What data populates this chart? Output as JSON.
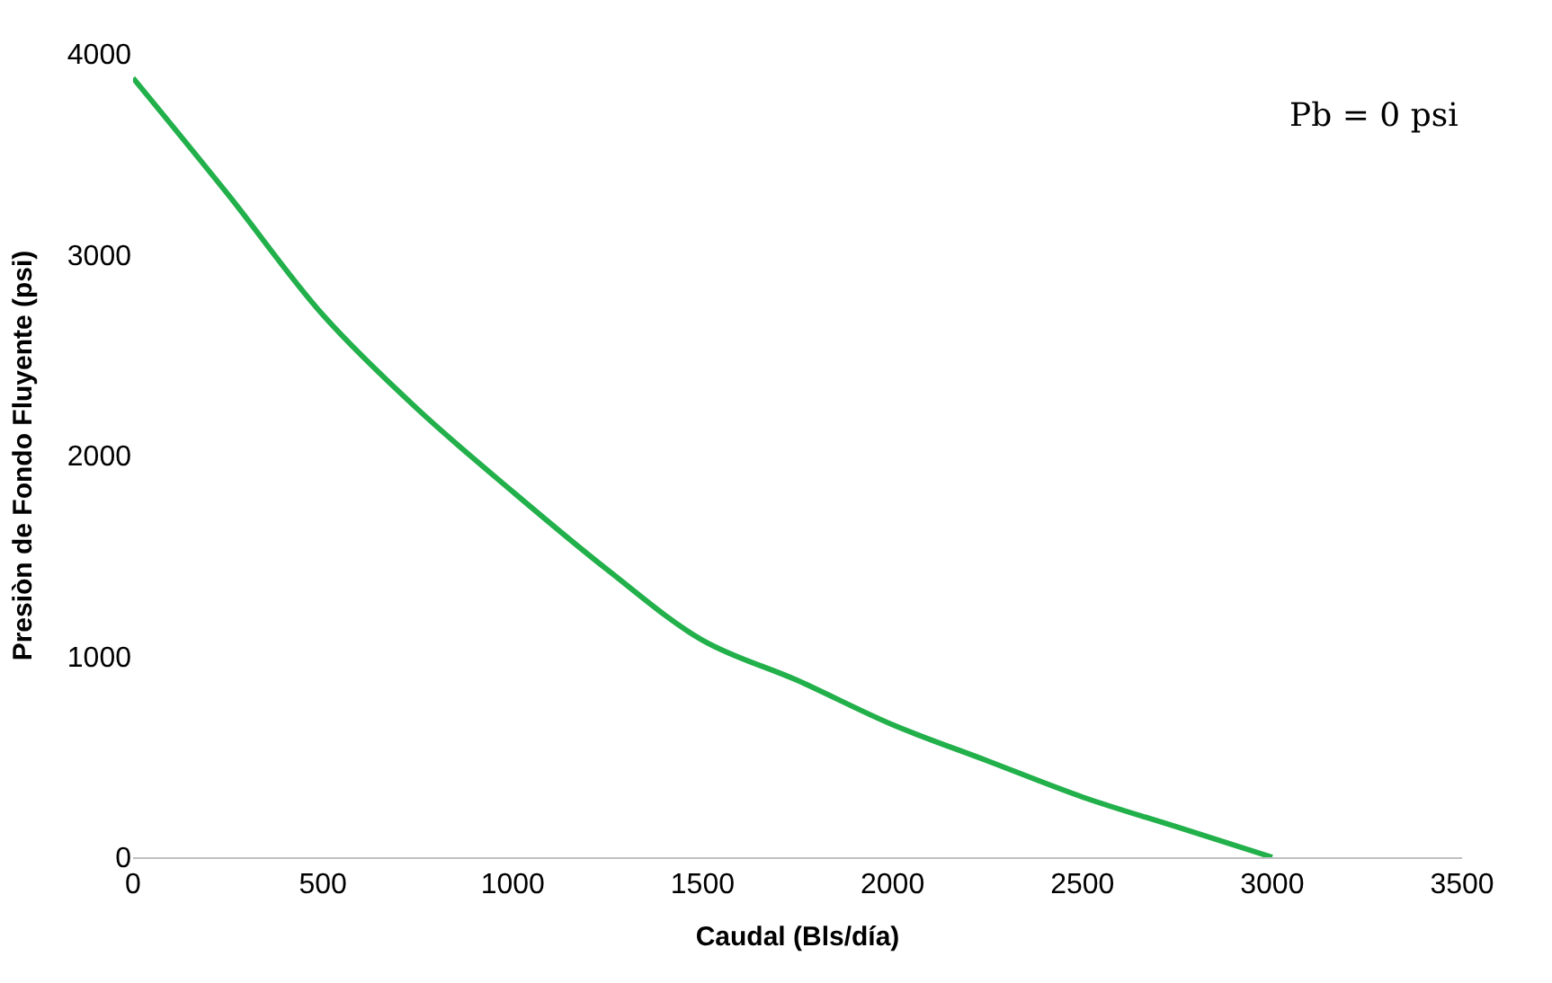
{
  "chart_data": {
    "type": "line",
    "xlabel": "Caudal (Bls/día)",
    "ylabel": "Presiòn de Fondo Fluyente (psi)",
    "x": [
      0,
      250,
      500,
      750,
      1000,
      1250,
      1500,
      1750,
      2000,
      2250,
      2500,
      2750,
      3000
    ],
    "series": [
      {
        "color": "#22b04b",
        "values": [
          3880,
          3300,
          2700,
          2230,
          1820,
          1430,
          1080,
          880,
          660,
          480,
          300,
          150,
          0
        ]
      }
    ],
    "xlim": [
      0,
      3500
    ],
    "xticks": [
      0,
      500,
      1000,
      1500,
      2000,
      2500,
      3000,
      3500
    ],
    "ylim": [
      0,
      4000
    ],
    "yticks": [
      0,
      1000,
      2000,
      3000,
      4000
    ],
    "grid": false,
    "legend": false,
    "marker": "none",
    "line_style": "solid",
    "annotations": [
      "Pb = 0 psi"
    ]
  }
}
